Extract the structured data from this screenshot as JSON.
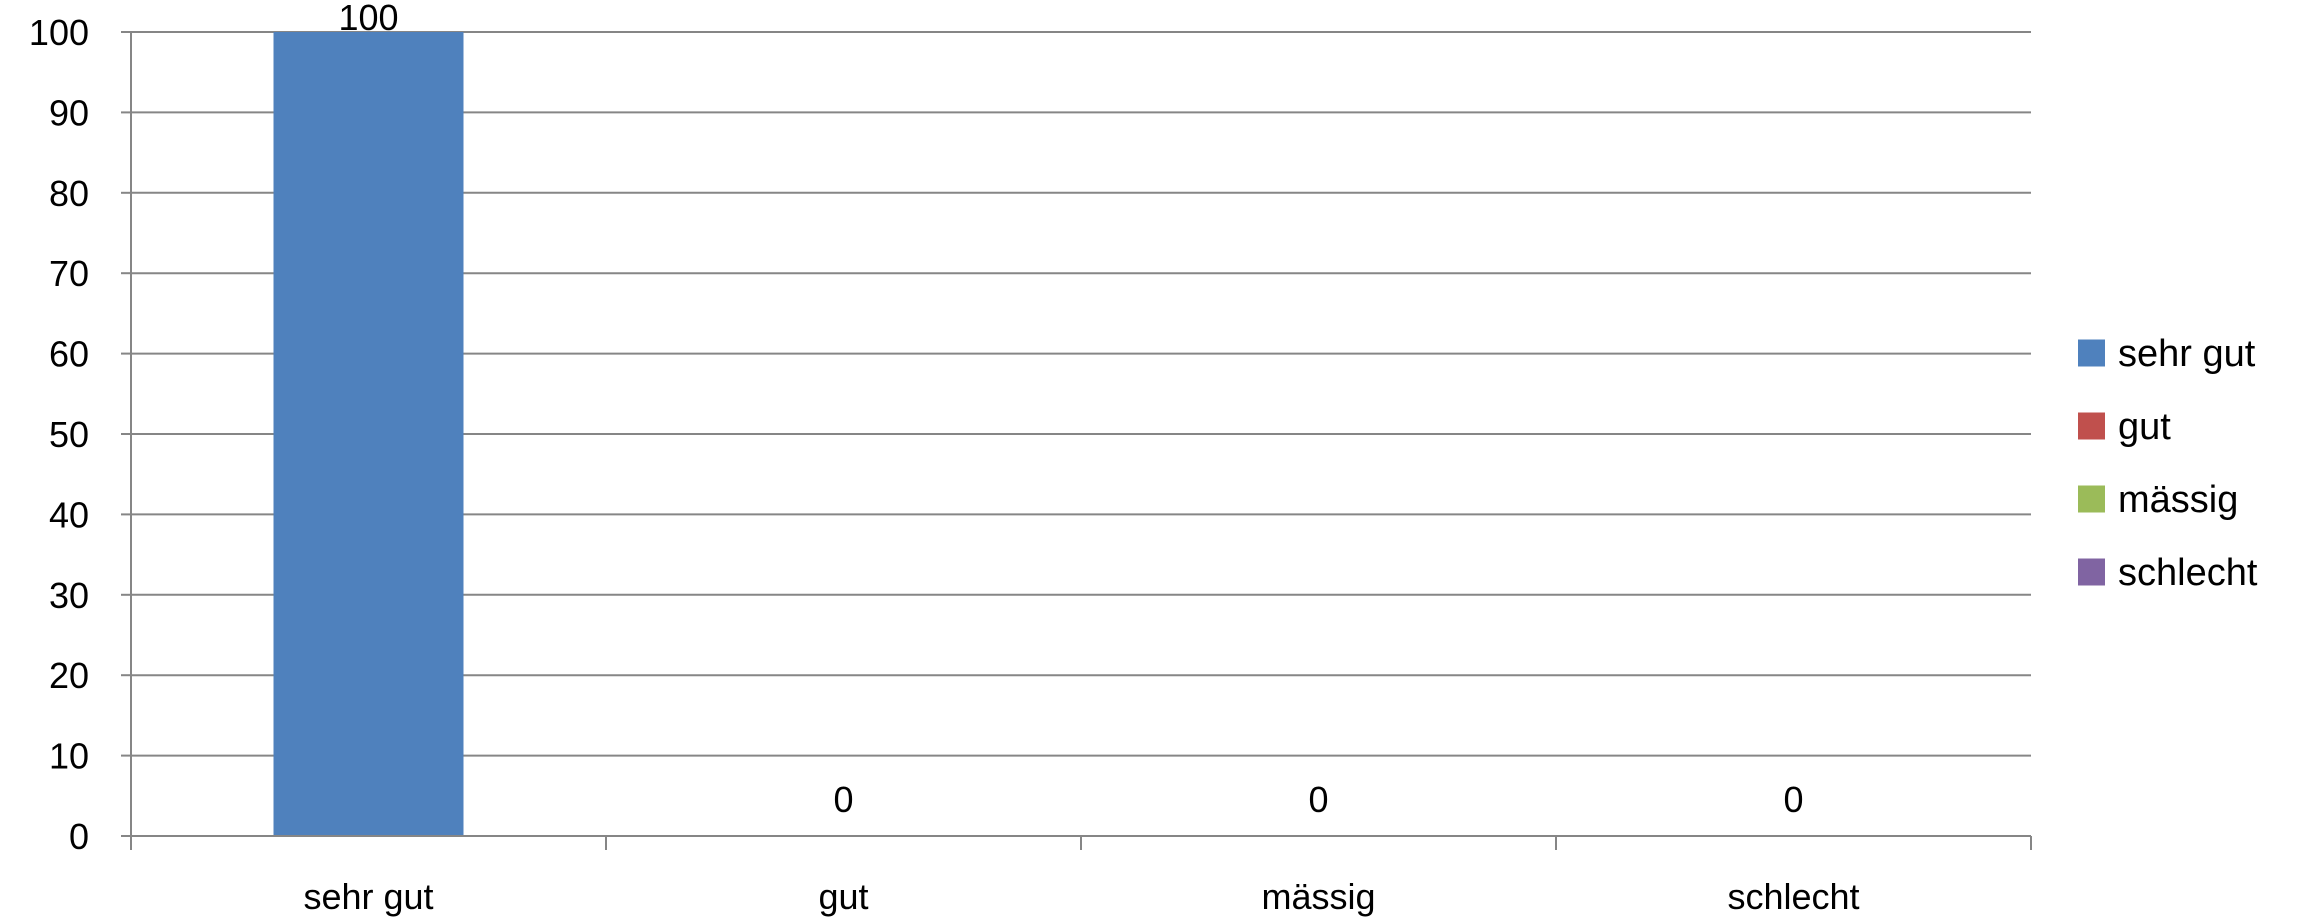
{
  "chart_data": {
    "type": "bar",
    "categories": [
      "sehr gut",
      "gut",
      "mässig",
      "schlecht"
    ],
    "series": [
      {
        "name": "sehr gut",
        "values": [
          100,
          null,
          null,
          null
        ]
      },
      {
        "name": "gut",
        "values": [
          null,
          0,
          null,
          null
        ]
      },
      {
        "name": "mässig",
        "values": [
          null,
          null,
          0,
          null
        ]
      },
      {
        "name": "schlecht",
        "values": [
          null,
          null,
          null,
          0
        ]
      }
    ],
    "values": [
      100,
      0,
      0,
      0
    ],
    "data_labels": [
      "100",
      "0",
      "0",
      "0"
    ],
    "y_ticks": [
      "0",
      "10",
      "20",
      "30",
      "40",
      "50",
      "60",
      "70",
      "80",
      "90",
      "100"
    ],
    "ylim": [
      0,
      100
    ],
    "grid": true,
    "legend_position": "right",
    "colors": [
      "#4F81BD",
      "#C0504D",
      "#9BBB59",
      "#8064A2"
    ],
    "gridline_color": "#868686"
  }
}
